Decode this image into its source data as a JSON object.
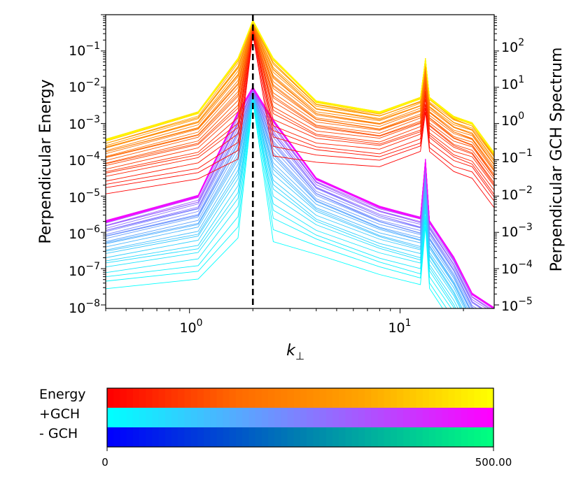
{
  "chart_data": {
    "type": "line",
    "title": "",
    "xlabel": "k",
    "xlabel_sub": "⊥",
    "ylabel_left": "Perpendicular Energy",
    "ylabel_right": "Perpendicular GCH Spectrum",
    "xscale": "log",
    "yscale": "log",
    "xlim": [
      0.4,
      28
    ],
    "ylim_left": [
      8e-09,
      1.0
    ],
    "ylim_right": [
      8e-06,
      1000
    ],
    "x_ticks": [
      {
        "base": "10",
        "exp": "0"
      },
      {
        "base": "10",
        "exp": "1"
      }
    ],
    "y_ticks_left": [
      {
        "base": "10",
        "exp": "−1"
      },
      {
        "base": "10",
        "exp": "−2"
      },
      {
        "base": "10",
        "exp": "−3"
      },
      {
        "base": "10",
        "exp": "−4"
      },
      {
        "base": "10",
        "exp": "−5"
      },
      {
        "base": "10",
        "exp": "−6"
      },
      {
        "base": "10",
        "exp": "−7"
      },
      {
        "base": "10",
        "exp": "−8"
      }
    ],
    "y_ticks_right": [
      {
        "base": "10",
        "exp": "2"
      },
      {
        "base": "10",
        "exp": "1"
      },
      {
        "base": "10",
        "exp": "0"
      },
      {
        "base": "10",
        "exp": "−1"
      },
      {
        "base": "10",
        "exp": "−2"
      },
      {
        "base": "10",
        "exp": "−3"
      },
      {
        "base": "10",
        "exp": "−4"
      },
      {
        "base": "10",
        "exp": "−5"
      }
    ],
    "vertical_line_x": 2.0,
    "energy_series": {
      "name": "Energy",
      "axis": "left",
      "n_curves": 40,
      "time_range": [
        0,
        500
      ],
      "x": [
        0.4,
        1.1,
        1.7,
        2.0,
        2.5,
        4.0,
        8.0,
        12.5,
        13.2,
        13.8,
        18,
        22,
        28
      ],
      "values": [
        0.00035,
        0.002,
        0.06,
        0.7,
        0.06,
        0.004,
        0.002,
        0.005,
        0.06,
        0.005,
        0.0015,
        0.001,
        0.00015
      ]
    },
    "gch_plus_series": {
      "name": "+GCH",
      "axis": "right",
      "n_curves": 40,
      "time_range": [
        0,
        500
      ],
      "x": [
        0.4,
        1.1,
        1.7,
        2.0,
        2.5,
        4.0,
        8.0,
        12.5,
        13.2,
        13.8,
        18,
        22,
        28
      ],
      "values": [
        0.002,
        0.01,
        2,
        10,
        1.2,
        0.03,
        0.005,
        0.0025,
        0.1,
        0.002,
        0.0002,
        2e-05,
        8e-06
      ]
    },
    "colorbar": {
      "min_label": "0",
      "max_label": "500.00",
      "rows": [
        {
          "label": "Energy",
          "colors": [
            "#ff0000",
            "#ff6a00",
            "#ffa500",
            "#ffff00"
          ]
        },
        {
          "label": "+GCH",
          "colors": [
            "#00ffff",
            "#7f80ff",
            "#ff00ff"
          ]
        },
        {
          "label": "- GCH",
          "colors": [
            "#0000ff",
            "#007fb0",
            "#00ff80"
          ]
        }
      ]
    }
  }
}
